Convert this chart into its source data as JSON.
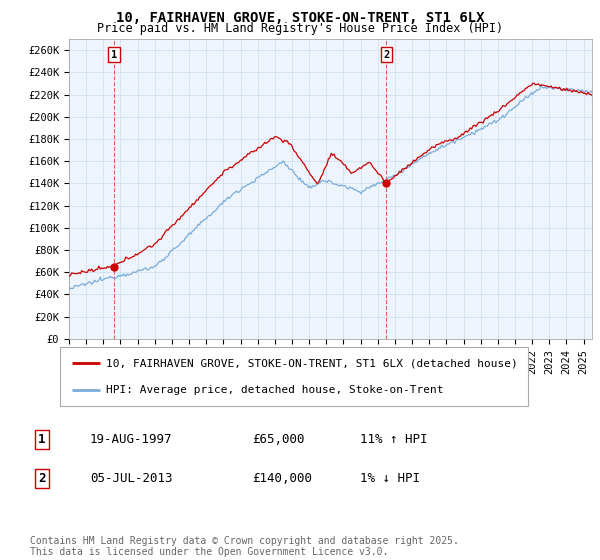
{
  "title": "10, FAIRHAVEN GROVE, STOKE-ON-TRENT, ST1 6LX",
  "subtitle": "Price paid vs. HM Land Registry's House Price Index (HPI)",
  "ylabel_ticks": [
    "£0",
    "£20K",
    "£40K",
    "£60K",
    "£80K",
    "£100K",
    "£120K",
    "£140K",
    "£160K",
    "£180K",
    "£200K",
    "£220K",
    "£240K",
    "£260K"
  ],
  "ytick_values": [
    0,
    20000,
    40000,
    60000,
    80000,
    100000,
    120000,
    140000,
    160000,
    180000,
    200000,
    220000,
    240000,
    260000
  ],
  "ylim": [
    0,
    270000
  ],
  "xlim_start": 1995.0,
  "xlim_end": 2025.5,
  "red_line_color": "#cc0000",
  "blue_line_color": "#7aaddb",
  "grid_color": "#ccddee",
  "background_color": "#eef4fb",
  "point1_x": 1997.63,
  "point1_y": 65000,
  "point2_x": 2013.5,
  "point2_y": 140000,
  "vline1_x": 1997.63,
  "vline2_x": 2013.5,
  "legend_line1": "10, FAIRHAVEN GROVE, STOKE-ON-TRENT, ST1 6LX (detached house)",
  "legend_line2": "HPI: Average price, detached house, Stoke-on-Trent",
  "point1_date": "19-AUG-1997",
  "point1_price": "£65,000",
  "point1_hpi": "11% ↑ HPI",
  "point2_date": "05-JUL-2013",
  "point2_price": "£140,000",
  "point2_hpi": "1% ↓ HPI",
  "footer": "Contains HM Land Registry data © Crown copyright and database right 2025.\nThis data is licensed under the Open Government Licence v3.0.",
  "title_fontsize": 10,
  "subtitle_fontsize": 8.5,
  "tick_fontsize": 7.5,
  "legend_fontsize": 8,
  "table_fontsize": 9,
  "footer_fontsize": 7
}
